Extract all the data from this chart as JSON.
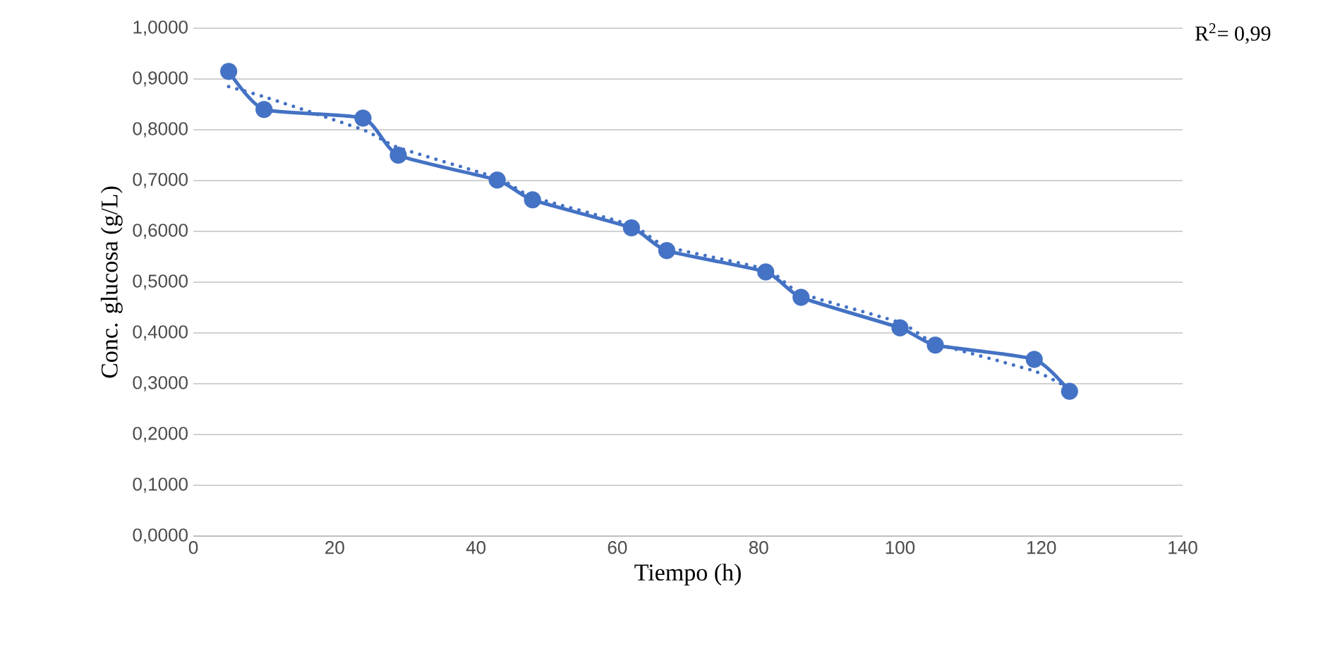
{
  "chart_data": {
    "type": "line",
    "xlabel": "Tiempo (h)",
    "ylabel": "Conc. glucosa (g/L)",
    "xlim": [
      0,
      140
    ],
    "xticks": [
      0,
      20,
      40,
      60,
      80,
      100,
      120,
      140
    ],
    "ylim": [
      0,
      1
    ],
    "yticks": [
      {
        "value": 0,
        "label": "0,0000"
      },
      {
        "value": 0.1,
        "label": "0,1000"
      },
      {
        "value": 0.2,
        "label": "0,2000"
      },
      {
        "value": 0.3,
        "label": "0,3000"
      },
      {
        "value": 0.4,
        "label": "0,4000"
      },
      {
        "value": 0.5,
        "label": "0,5000"
      },
      {
        "value": 0.6,
        "label": "0,6000"
      },
      {
        "value": 0.7,
        "label": "0,7000"
      },
      {
        "value": 0.8,
        "label": "0,8000"
      },
      {
        "value": 0.9,
        "label": "0,9000"
      },
      {
        "value": 1,
        "label": "1,0000"
      }
    ],
    "grid": "y",
    "series": [
      {
        "color": "#4472c4",
        "marker": "circle",
        "line_style": "solid",
        "x": [
          5,
          10,
          24,
          29,
          43,
          48,
          62,
          67,
          81,
          86,
          100,
          105,
          119,
          124
        ],
        "values": [
          0.915,
          0.84,
          0.823,
          0.75,
          0.701,
          0.662,
          0.607,
          0.562,
          0.52,
          0.47,
          0.41,
          0.376,
          0.348,
          0.285
        ]
      },
      {
        "color": "#4472c4",
        "marker": "none",
        "line_style": "dotted",
        "x": [
          5,
          10,
          24,
          29,
          43,
          48,
          62,
          67,
          81,
          86,
          100,
          105,
          119,
          124
        ],
        "values": [
          0.885,
          0.865,
          0.8,
          0.765,
          0.705,
          0.668,
          0.612,
          0.57,
          0.525,
          0.478,
          0.42,
          0.38,
          0.325,
          0.29
        ]
      }
    ],
    "annotations": [
      "R$^{2}$= 0,99"
    ]
  }
}
